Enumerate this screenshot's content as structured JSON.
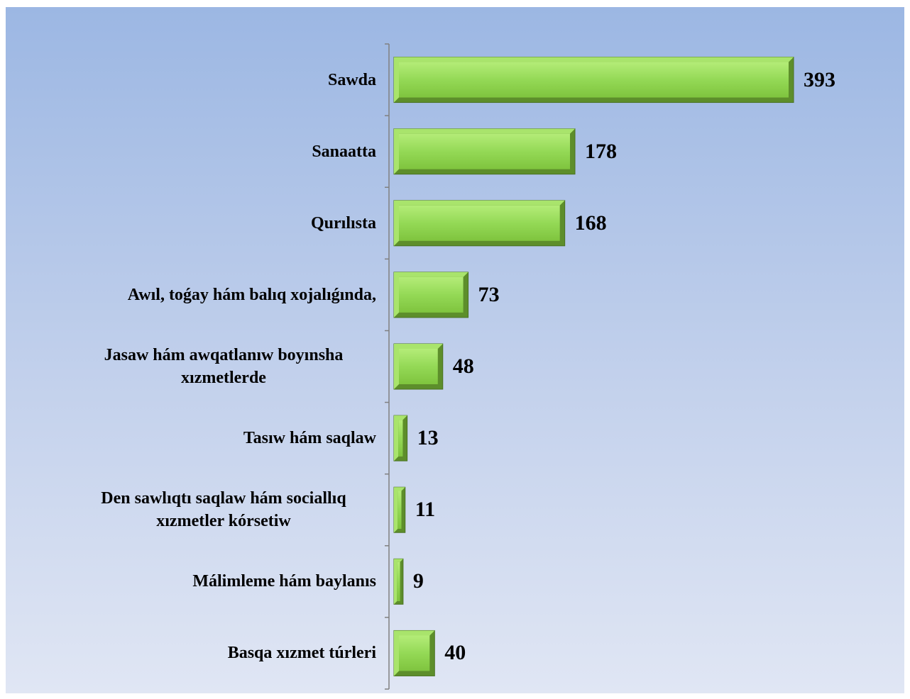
{
  "chart_data": {
    "type": "bar",
    "orientation": "horizontal",
    "categories": [
      "Sawda",
      "Sanaatta",
      "Qurılısta",
      "Awıl, toǵay hám balıq xojalıǵında,",
      "Jasaw hám awqatlanıw boyınsha xızmetlerde",
      "Tasıw hám saqlaw",
      "Den sawlıqtı saqlaw hám sociallıq xızmetler kórsetiw",
      "Málimleme hám baylanıs",
      "Basqa xızmet túrleri"
    ],
    "values": [
      393,
      178,
      168,
      73,
      48,
      13,
      11,
      9,
      40
    ],
    "color": "#8fd44c"
  }
}
